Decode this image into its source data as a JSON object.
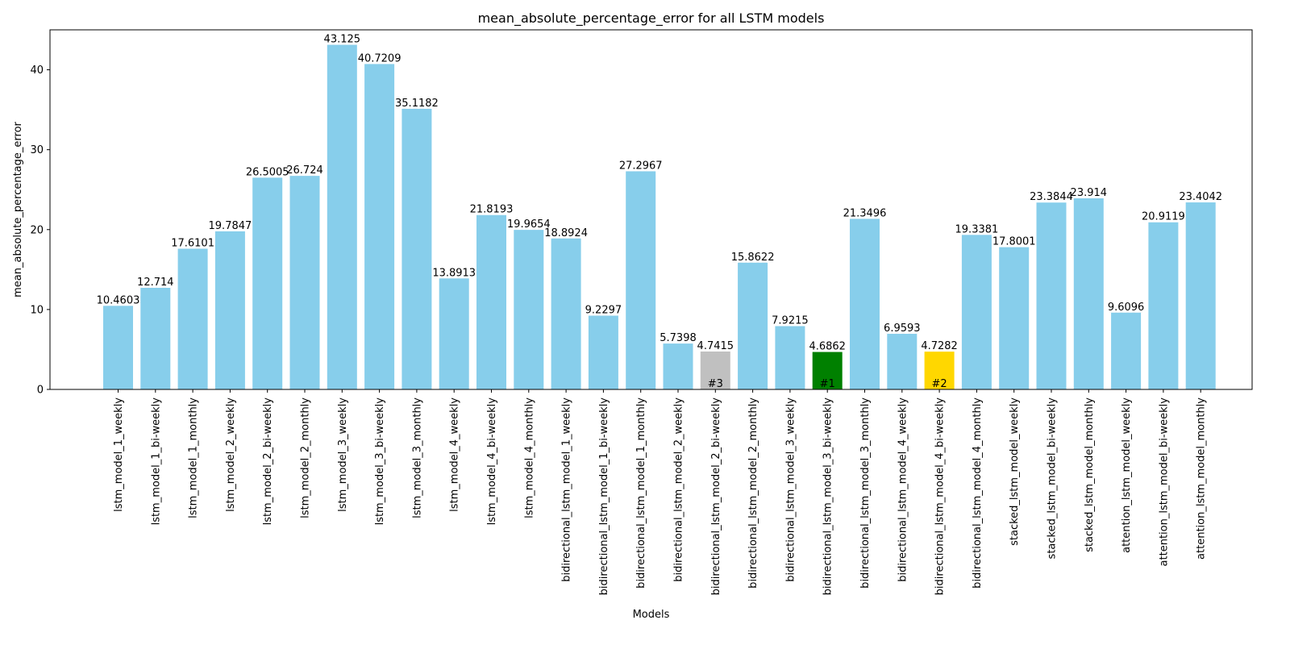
{
  "chart_data": {
    "type": "bar",
    "title": "mean_absolute_percentage_error for all LSTM models",
    "xlabel": "Models",
    "ylabel": "mean_absolute_percentage_error",
    "ylim": [
      0,
      45
    ],
    "yticks": [
      0,
      10,
      20,
      30,
      40
    ],
    "grid": false,
    "default_color": "#87ceeb",
    "categories": [
      "lstm_model_1_weekly",
      "lstm_model_1_bi-weekly",
      "lstm_model_1_monthly",
      "lstm_model_2_weekly",
      "lstm_model_2_bi-weekly",
      "lstm_model_2_monthly",
      "lstm_model_3_weekly",
      "lstm_model_3_bi-weekly",
      "lstm_model_3_monthly",
      "lstm_model_4_weekly",
      "lstm_model_4_bi-weekly",
      "lstm_model_4_monthly",
      "bidirectional_lstm_model_1_weekly",
      "bidirectional_lstm_model_1_bi-weekly",
      "bidirectional_lstm_model_1_monthly",
      "bidirectional_lstm_model_2_weekly",
      "bidirectional_lstm_model_2_bi-weekly",
      "bidirectional_lstm_model_2_monthly",
      "bidirectional_lstm_model_3_weekly",
      "bidirectional_lstm_model_3_bi-weekly",
      "bidirectional_lstm_model_3_monthly",
      "bidirectional_lstm_model_4_weekly",
      "bidirectional_lstm_model_4_bi-weekly",
      "bidirectional_lstm_model_4_monthly",
      "stacked_lstm_model_weekly",
      "stacked_lstm_model_bi-weekly",
      "stacked_lstm_model_monthly",
      "attention_lstm_model_weekly",
      "attention_lstm_model_bi-weekly",
      "attention_lstm_model_monthly"
    ],
    "values": [
      10.4603,
      12.714,
      17.6101,
      19.7847,
      26.5005,
      26.724,
      43.125,
      40.7209,
      35.1182,
      13.8913,
      21.8193,
      19.9654,
      18.8924,
      9.2297,
      27.2967,
      5.7398,
      4.7415,
      15.8622,
      7.9215,
      4.6862,
      21.3496,
      6.9593,
      4.7282,
      19.3381,
      17.8001,
      23.3844,
      23.914,
      9.6096,
      20.9119,
      23.4042
    ],
    "value_labels": [
      "10.4603",
      "12.714",
      "17.6101",
      "19.7847",
      "26.5005",
      "26.724",
      "43.125",
      "40.7209",
      "35.1182",
      "13.8913",
      "21.8193",
      "19.9654",
      "18.8924",
      "9.2297",
      "27.2967",
      "5.7398",
      "4.7415",
      "15.8622",
      "7.9215",
      "4.6862",
      "21.3496",
      "6.9593",
      "4.7282",
      "19.3381",
      "17.8001",
      "23.3844",
      "23.914",
      "9.6096",
      "20.9119",
      "23.4042"
    ],
    "highlights": [
      {
        "index": 19,
        "rank": "#1",
        "color": "#008000"
      },
      {
        "index": 22,
        "rank": "#2",
        "color": "#ffd700"
      },
      {
        "index": 16,
        "rank": "#3",
        "color": "#c0c0c0"
      }
    ]
  }
}
